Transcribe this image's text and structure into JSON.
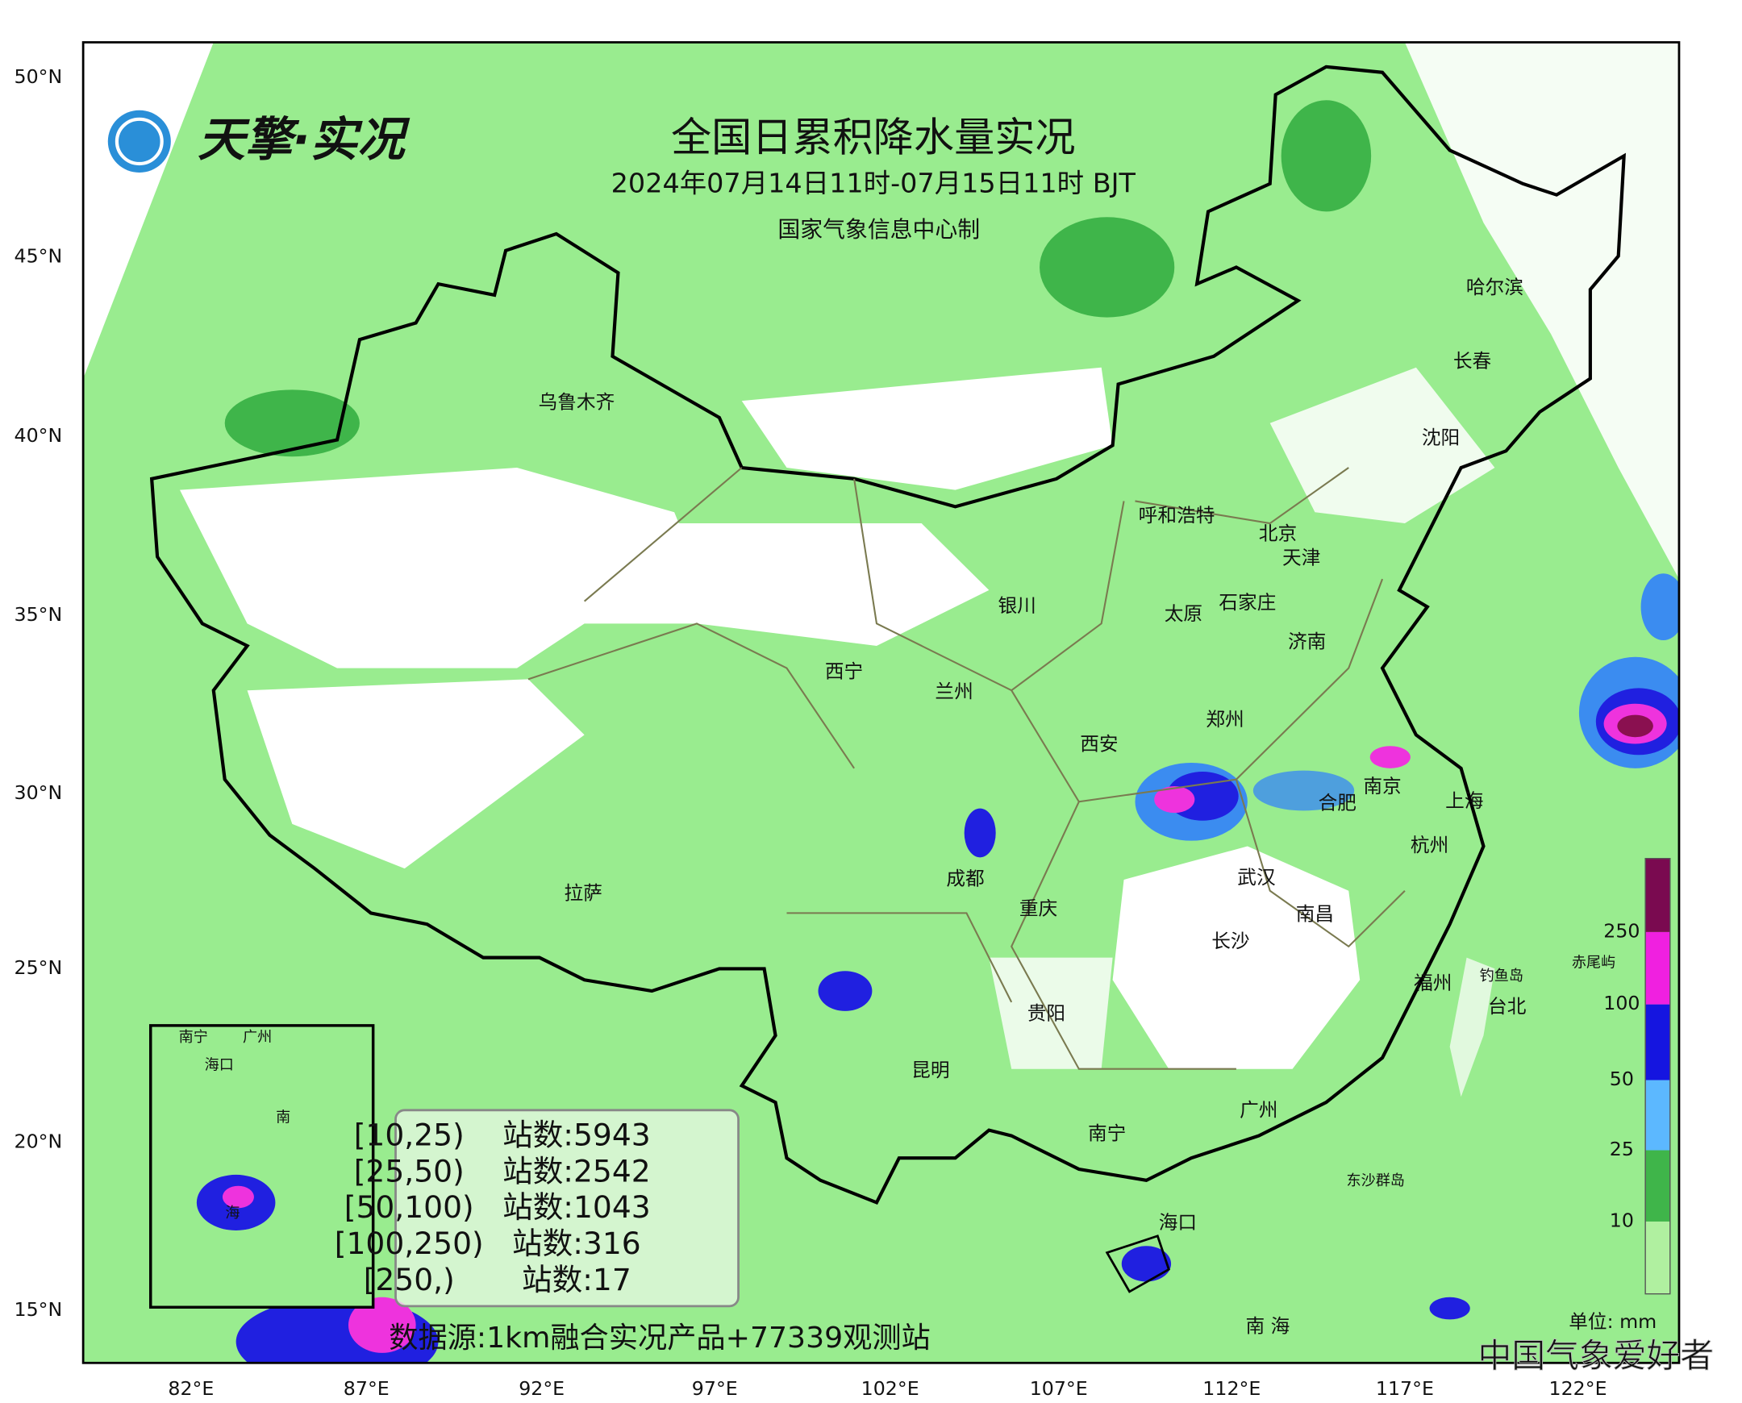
{
  "header": {
    "logo": "天擎·实况",
    "title": "全国日累积降水量实况",
    "subtitle": "2024年07月14日11时-07月15日11时 BJT",
    "producer": "国家气象信息中心制"
  },
  "axes": {
    "lat_labels": [
      "50°N",
      "45°N",
      "40°N",
      "35°N",
      "30°N",
      "25°N",
      "20°N",
      "15°N"
    ],
    "lon_labels": [
      "82°E",
      "87°E",
      "92°E",
      "97°E",
      "102°E",
      "107°E",
      "112°E",
      "117°E",
      "122°E"
    ]
  },
  "cities": [
    "乌鲁木齐",
    "哈尔滨",
    "长春",
    "沈阳",
    "呼和浩特",
    "北京",
    "天津",
    "石家庄",
    "太原",
    "银川",
    "济南",
    "西宁",
    "兰州",
    "郑州",
    "西安",
    "南京",
    "上海",
    "合肥",
    "杭州",
    "成都",
    "拉萨",
    "武汉",
    "重庆",
    "南昌",
    "长沙",
    "福州",
    "台北",
    "贵阳",
    "昆明",
    "广州",
    "南宁",
    "海口",
    "南 海"
  ],
  "small_labels": [
    "钓鱼岛",
    "赤尾屿",
    "东沙群岛"
  ],
  "inset_labels": [
    "南宁",
    "广州",
    "海口",
    "南",
    "海"
  ],
  "legend": {
    "levels": [
      "10",
      "25",
      "50",
      "100",
      "250"
    ],
    "unit": "单位: mm"
  },
  "stations": {
    "rows": [
      [
        "[10,25)",
        "站数:5943"
      ],
      [
        "[25,50)",
        "站数:2542"
      ],
      [
        "[50,100)",
        "站数:1043"
      ],
      [
        "[100,250)",
        "站数:316"
      ],
      [
        "[250,)",
        "站数:17"
      ]
    ]
  },
  "source": "数据源:1km融合实况产品+77339观测站",
  "watermark": "中国气象爱好者"
}
